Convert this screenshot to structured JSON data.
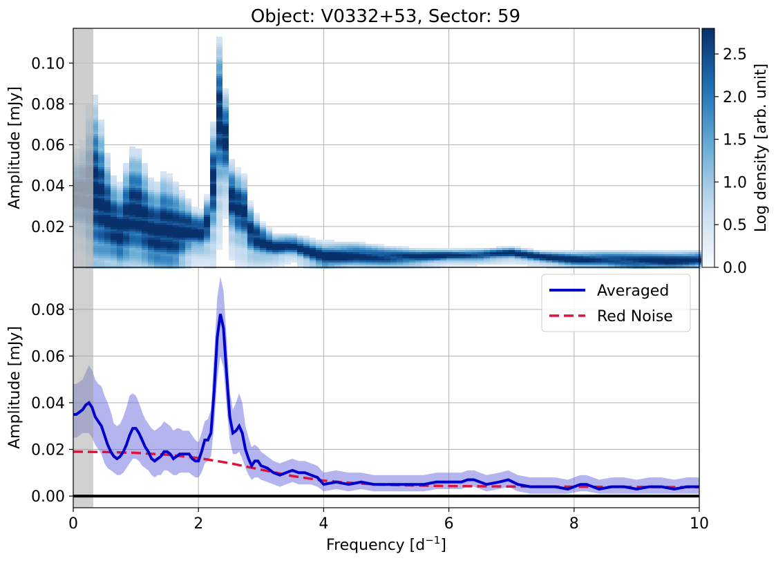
{
  "chart_data": [
    {
      "type": "heatmap",
      "title": "Object: V0332+53, Sector: 59",
      "xlim": [
        0,
        10
      ],
      "ylim": [
        0,
        0.117
      ],
      "ylabel": "Amplitude [mJy]",
      "yticks": [
        0.02,
        0.04,
        0.06,
        0.08,
        0.1
      ],
      "ytick_labels": [
        "0.02",
        "0.04",
        "0.06",
        "0.08",
        "0.10"
      ],
      "shaded_region": [
        0,
        0.32
      ],
      "colorbar": {
        "label": "Log density [arb. unit]",
        "range": [
          0,
          2.8
        ],
        "ticks": [
          0.0,
          0.5,
          1.0,
          1.5,
          2.0,
          2.5
        ],
        "tick_labels": [
          "0.0",
          "0.5",
          "1.0",
          "1.5",
          "2.0",
          "2.5"
        ],
        "color_low": "#f7fbff",
        "color_mid": "#6baed6",
        "color_high": "#08306b"
      },
      "ridge": {
        "x": [
          0.0,
          0.15,
          0.3,
          0.45,
          0.6,
          0.75,
          0.9,
          1.0,
          1.15,
          1.3,
          1.45,
          1.6,
          1.75,
          1.9,
          2.0,
          2.15,
          2.25,
          2.35,
          2.45,
          2.55,
          2.7,
          2.85,
          3.0,
          3.2,
          3.5,
          4.0,
          4.5,
          5.0,
          5.5,
          6.0,
          6.5,
          7.0,
          7.5,
          8.0,
          8.5,
          9.0,
          9.5,
          10.0
        ],
        "y": [
          0.035,
          0.036,
          0.04,
          0.032,
          0.022,
          0.018,
          0.026,
          0.029,
          0.022,
          0.016,
          0.019,
          0.017,
          0.018,
          0.019,
          0.016,
          0.022,
          0.045,
          0.078,
          0.06,
          0.028,
          0.03,
          0.016,
          0.013,
          0.01,
          0.011,
          0.005,
          0.006,
          0.005,
          0.005,
          0.006,
          0.006,
          0.007,
          0.005,
          0.004,
          0.004,
          0.003,
          0.003,
          0.004
        ],
        "upper": [
          0.055,
          0.06,
          0.088,
          0.07,
          0.045,
          0.04,
          0.055,
          0.06,
          0.048,
          0.038,
          0.046,
          0.042,
          0.035,
          0.03,
          0.025,
          0.035,
          0.075,
          0.117,
          0.08,
          0.045,
          0.048,
          0.028,
          0.022,
          0.016,
          0.016,
          0.012,
          0.012,
          0.01,
          0.009,
          0.009,
          0.009,
          0.009,
          0.008,
          0.008,
          0.008,
          0.008,
          0.008,
          0.008
        ]
      }
    },
    {
      "type": "line",
      "xlabel": "Frequency [d⁻¹]",
      "ylabel": "Amplitude [mJy]",
      "xlim": [
        0,
        10
      ],
      "ylim": [
        -0.005,
        0.098
      ],
      "xticks": [
        0,
        2,
        4,
        6,
        8,
        10
      ],
      "xtick_labels": [
        "0",
        "2",
        "4",
        "6",
        "8",
        "10"
      ],
      "yticks": [
        0.0,
        0.02,
        0.04,
        0.06,
        0.08
      ],
      "ytick_labels": [
        "0.00",
        "0.02",
        "0.04",
        "0.06",
        "0.08"
      ],
      "shaded_region": [
        0,
        0.32
      ],
      "legend": {
        "position": "top-right",
        "entries": [
          "Averaged",
          "Red Noise"
        ]
      },
      "series": [
        {
          "name": "Averaged",
          "color": "#0000cc",
          "x": [
            0.0,
            0.05,
            0.1,
            0.15,
            0.2,
            0.25,
            0.3,
            0.35,
            0.4,
            0.45,
            0.5,
            0.55,
            0.6,
            0.65,
            0.7,
            0.75,
            0.8,
            0.85,
            0.9,
            0.95,
            1.0,
            1.05,
            1.1,
            1.15,
            1.2,
            1.25,
            1.3,
            1.35,
            1.4,
            1.45,
            1.5,
            1.55,
            1.6,
            1.65,
            1.7,
            1.75,
            1.8,
            1.85,
            1.9,
            1.95,
            2.0,
            2.05,
            2.1,
            2.15,
            2.2,
            2.25,
            2.3,
            2.35,
            2.4,
            2.45,
            2.5,
            2.55,
            2.6,
            2.65,
            2.7,
            2.75,
            2.8,
            2.85,
            2.9,
            2.95,
            3.0,
            3.1,
            3.2,
            3.3,
            3.4,
            3.5,
            3.6,
            3.7,
            3.8,
            3.9,
            4.0,
            4.2,
            4.4,
            4.6,
            4.8,
            5.0,
            5.2,
            5.4,
            5.6,
            5.8,
            6.0,
            6.2,
            6.3,
            6.4,
            6.6,
            6.8,
            6.95,
            7.1,
            7.3,
            7.5,
            7.7,
            7.9,
            8.1,
            8.2,
            8.4,
            8.6,
            8.8,
            9.0,
            9.2,
            9.4,
            9.6,
            9.8,
            10.0
          ],
          "values": [
            0.035,
            0.035,
            0.036,
            0.037,
            0.039,
            0.04,
            0.038,
            0.034,
            0.032,
            0.03,
            0.026,
            0.022,
            0.019,
            0.017,
            0.016,
            0.017,
            0.019,
            0.022,
            0.026,
            0.029,
            0.029,
            0.027,
            0.024,
            0.021,
            0.019,
            0.016,
            0.015,
            0.016,
            0.017,
            0.019,
            0.019,
            0.018,
            0.016,
            0.017,
            0.018,
            0.018,
            0.018,
            0.018,
            0.016,
            0.015,
            0.015,
            0.019,
            0.024,
            0.024,
            0.027,
            0.045,
            0.068,
            0.078,
            0.072,
            0.052,
            0.034,
            0.027,
            0.028,
            0.03,
            0.027,
            0.02,
            0.016,
            0.013,
            0.015,
            0.015,
            0.013,
            0.012,
            0.01,
            0.009,
            0.01,
            0.011,
            0.01,
            0.01,
            0.009,
            0.008,
            0.005,
            0.006,
            0.005,
            0.006,
            0.005,
            0.005,
            0.005,
            0.005,
            0.005,
            0.006,
            0.006,
            0.006,
            0.007,
            0.007,
            0.005,
            0.006,
            0.007,
            0.005,
            0.004,
            0.004,
            0.004,
            0.003,
            0.005,
            0.005,
            0.003,
            0.004,
            0.004,
            0.003,
            0.004,
            0.004,
            0.003,
            0.004,
            0.004
          ],
          "upper": [
            0.048,
            0.048,
            0.049,
            0.05,
            0.053,
            0.056,
            0.054,
            0.05,
            0.048,
            0.047,
            0.043,
            0.04,
            0.036,
            0.031,
            0.03,
            0.031,
            0.034,
            0.038,
            0.043,
            0.044,
            0.043,
            0.04,
            0.036,
            0.033,
            0.031,
            0.029,
            0.028,
            0.029,
            0.03,
            0.032,
            0.031,
            0.03,
            0.028,
            0.029,
            0.029,
            0.028,
            0.028,
            0.028,
            0.026,
            0.024,
            0.023,
            0.027,
            0.032,
            0.033,
            0.037,
            0.061,
            0.085,
            0.094,
            0.088,
            0.068,
            0.045,
            0.037,
            0.04,
            0.044,
            0.04,
            0.03,
            0.025,
            0.021,
            0.022,
            0.021,
            0.019,
            0.017,
            0.015,
            0.014,
            0.015,
            0.016,
            0.015,
            0.015,
            0.014,
            0.013,
            0.01,
            0.011,
            0.01,
            0.01,
            0.009,
            0.009,
            0.009,
            0.009,
            0.009,
            0.01,
            0.01,
            0.01,
            0.011,
            0.011,
            0.009,
            0.01,
            0.011,
            0.009,
            0.008,
            0.008,
            0.008,
            0.007,
            0.009,
            0.009,
            0.007,
            0.008,
            0.008,
            0.007,
            0.008,
            0.008,
            0.007,
            0.008,
            0.008
          ],
          "lower": [
            0.025,
            0.025,
            0.026,
            0.027,
            0.027,
            0.027,
            0.025,
            0.022,
            0.02,
            0.018,
            0.014,
            0.012,
            0.011,
            0.01,
            0.009,
            0.009,
            0.01,
            0.012,
            0.014,
            0.016,
            0.016,
            0.015,
            0.013,
            0.012,
            0.011,
            0.009,
            0.008,
            0.009,
            0.009,
            0.011,
            0.011,
            0.01,
            0.009,
            0.009,
            0.01,
            0.01,
            0.01,
            0.01,
            0.009,
            0.008,
            0.008,
            0.01,
            0.014,
            0.015,
            0.017,
            0.03,
            0.05,
            0.06,
            0.055,
            0.038,
            0.024,
            0.018,
            0.018,
            0.019,
            0.016,
            0.012,
            0.009,
            0.007,
            0.008,
            0.008,
            0.007,
            0.006,
            0.005,
            0.004,
            0.005,
            0.006,
            0.005,
            0.005,
            0.005,
            0.004,
            0.002,
            0.003,
            0.002,
            0.003,
            0.002,
            0.002,
            0.002,
            0.002,
            0.002,
            0.003,
            0.003,
            0.003,
            0.004,
            0.004,
            0.002,
            0.003,
            0.004,
            0.002,
            0.001,
            0.001,
            0.001,
            0.001,
            0.002,
            0.002,
            0.001,
            0.001,
            0.001,
            0.001,
            0.001,
            0.001,
            0.001,
            0.001,
            0.001
          ]
        },
        {
          "name": "Red Noise",
          "color": "#dc143c",
          "dashed": true,
          "x": [
            0.0,
            0.5,
            1.0,
            1.5,
            2.0,
            2.5,
            3.0,
            3.5,
            4.0,
            4.5,
            5.0,
            5.5,
            6.0,
            7.0,
            8.0,
            9.0,
            10.0
          ],
          "values": [
            0.019,
            0.0189,
            0.0185,
            0.0177,
            0.0163,
            0.0141,
            0.0113,
            0.0086,
            0.0066,
            0.0055,
            0.0048,
            0.0045,
            0.0043,
            0.0041,
            0.004,
            0.0039,
            0.0038
          ]
        }
      ]
    }
  ]
}
